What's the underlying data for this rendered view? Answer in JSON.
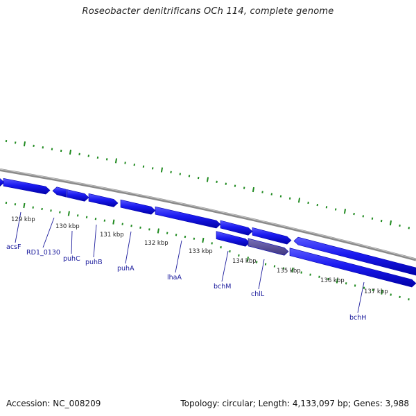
{
  "title": "Roseobacter denitrificans OCh 114, complete genome",
  "footer": {
    "accession": "Accession: NC_008209",
    "summary": "Topology: circular; Length: 4,133,097 bp; Genes: 3,988"
  },
  "colors": {
    "gene": "#1a1af0",
    "gene_dark": "#0000b0",
    "gene_highlight": "#5a4f9a",
    "backbone": "#8a8a8a",
    "tick": "#1f8a1f",
    "label": "#1a1a9c"
  },
  "ticks": [
    "129 kbp",
    "130 kbp",
    "131 kbp",
    "132 kbp",
    "133 kbp",
    "134 kbp",
    "135 kbp",
    "136 kbp",
    "137 kbp"
  ],
  "genes": [
    {
      "name": "acsF"
    },
    {
      "name": "RD1_0130"
    },
    {
      "name": "puhC"
    },
    {
      "name": "puhB"
    },
    {
      "name": "puhA"
    },
    {
      "name": "lhaA"
    },
    {
      "name": "bchM"
    },
    {
      "name": "chlL"
    },
    {
      "name": "bchH"
    }
  ]
}
